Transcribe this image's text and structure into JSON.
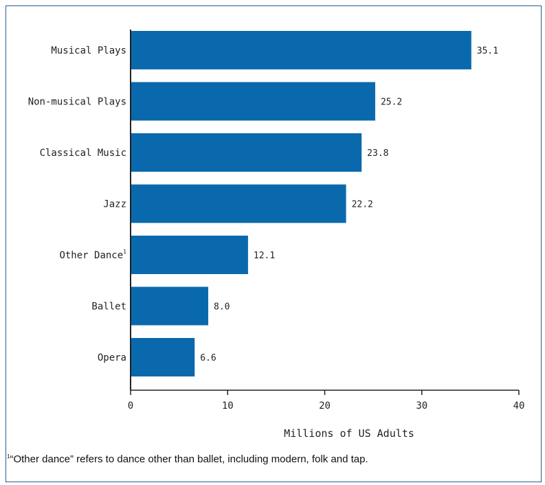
{
  "chart_data": {
    "type": "bar",
    "orientation": "horizontal",
    "categories": [
      "Musical Plays",
      "Non-musical Plays",
      "Classical Music",
      "Jazz",
      "Other Dance",
      "Ballet",
      "Opera"
    ],
    "category_marks": [
      "",
      "",
      "",
      "",
      "1",
      "",
      ""
    ],
    "values": [
      35.1,
      25.2,
      23.8,
      22.2,
      12.1,
      8.0,
      6.6
    ],
    "value_labels": [
      "35.1",
      "25.2",
      "23.8",
      "22.2",
      "12.1",
      "8.0",
      "6.6"
    ],
    "xlabel": "Millions of US Adults",
    "xlim": [
      0,
      40
    ],
    "xticks": [
      0,
      10,
      20,
      30,
      40
    ],
    "bar_color": "#0a69ad",
    "grid": false
  },
  "footnote": {
    "mark": "1",
    "text": "“Other dance” refers to dance other than ballet, including modern, folk and tap."
  }
}
